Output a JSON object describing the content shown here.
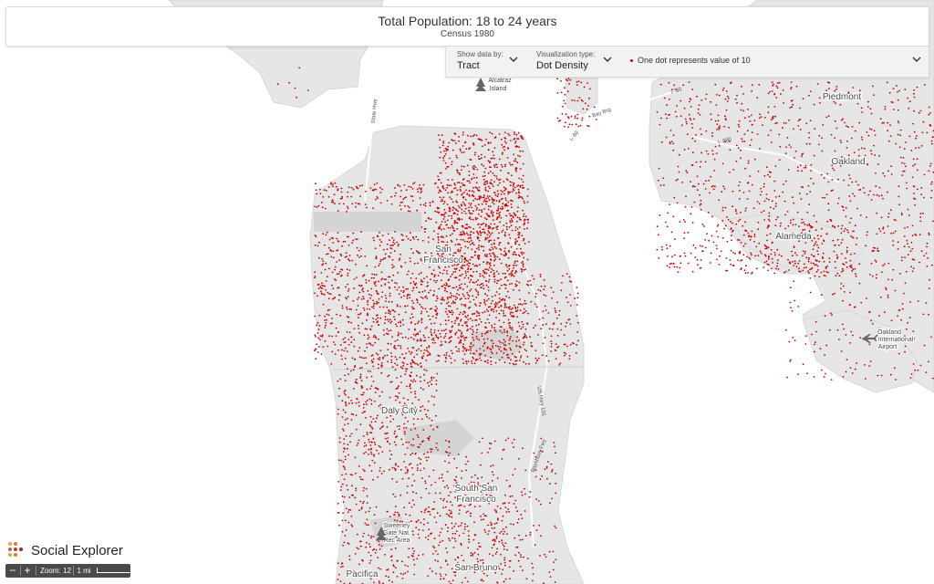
{
  "header": {
    "title": "Total Population: 18 to 24 years",
    "subtitle": "Census 1980"
  },
  "controls": {
    "show_data_by_label": "Show data by:",
    "show_data_by_value": "Tract",
    "viz_type_label": "Visualization type:",
    "viz_type_value": "Dot Density",
    "legend_text": "One dot represents value of 10"
  },
  "map": {
    "dot_color": "#cc0000",
    "land_color": "#e6e6e6",
    "water_color": "#ffffff",
    "places": {
      "san_francisco_1": "San",
      "san_francisco_2": "Francisco",
      "daly_city": "Daly City",
      "south_sf_1": "South San",
      "south_sf_2": "Francisco",
      "san_bruno": "San Bruno",
      "pacifica": "Pacifica",
      "oakland": "Oakland",
      "alameda": "Alameda",
      "piedmont": "Piedmont",
      "alcatraz_1": "Alcatraz",
      "alcatraz_2": "Island",
      "oak_airport_1": "Oakland",
      "oak_airport_2": "International",
      "oak_airport_3": "Airport",
      "sweeney_1": "Sweeney",
      "sweeney_2": "Gate Nat.",
      "sweeney_3": "Rec Area"
    },
    "roads": {
      "i80_bay_bridge": "I- 80",
      "i80_sf": "I- 80",
      "state_hwy_1": "State Hwy",
      "i880": "I- 880",
      "bay_brg": "Bay Brg",
      "us_hwy_101": "US Hwy 101",
      "bayshore_fwy": "Bayshore Fwy"
    }
  },
  "footer": {
    "brand": "Social Explorer",
    "zoom_out": "−",
    "zoom_in": "+",
    "zoom_level": "Zoom: 12",
    "scale": "1 mi"
  }
}
